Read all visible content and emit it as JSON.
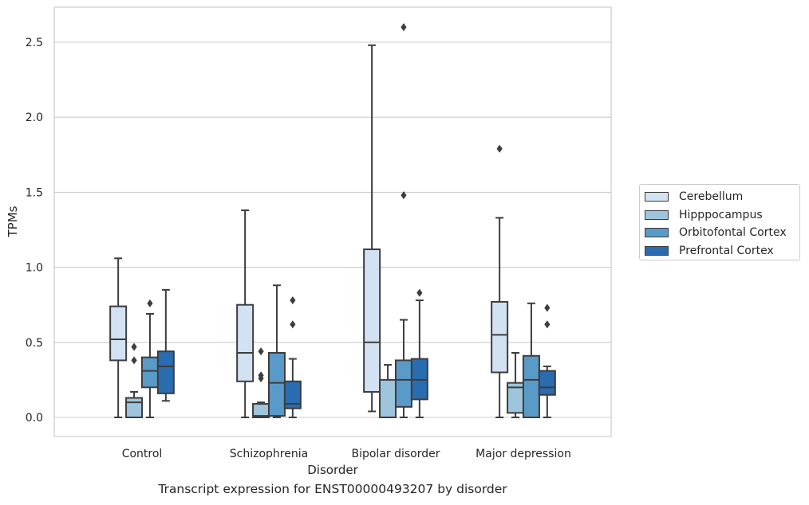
{
  "chart_data": {
    "type": "box",
    "caption": "Transcript expression for ENST00000493207 by disorder",
    "xlabel": "Disorder",
    "ylabel": "TPMs",
    "ylim": [
      -0.13,
      2.74
    ],
    "yticks": [
      0.0,
      0.5,
      1.0,
      1.5,
      2.0,
      2.5
    ],
    "ytick_labels": [
      "0.0",
      "0.5",
      "1.0",
      "1.5",
      "2.0",
      "2.5"
    ],
    "grid": "horizontal",
    "legend_position": "right",
    "categories": [
      "Control",
      "Schizophrenia",
      "Bipolar disorder",
      "Major depression"
    ],
    "series": [
      {
        "name": "Cerebellum",
        "color": "#d3e2f2",
        "boxes": [
          {
            "whisker_low": 0.0,
            "q1": 0.38,
            "median": 0.52,
            "q3": 0.74,
            "whisker_high": 1.06,
            "outliers": []
          },
          {
            "whisker_low": 0.0,
            "q1": 0.24,
            "median": 0.43,
            "q3": 0.75,
            "whisker_high": 1.38,
            "outliers": []
          },
          {
            "whisker_low": 0.04,
            "q1": 0.17,
            "median": 0.5,
            "q3": 1.12,
            "whisker_high": 2.48,
            "outliers": []
          },
          {
            "whisker_low": 0.0,
            "q1": 0.3,
            "median": 0.55,
            "q3": 0.77,
            "whisker_high": 1.33,
            "outliers": [
              1.79
            ]
          }
        ]
      },
      {
        "name": "Hipppocampus",
        "color": "#9fc5dd",
        "boxes": [
          {
            "whisker_low": 0.0,
            "q1": 0.0,
            "median": 0.1,
            "q3": 0.13,
            "whisker_high": 0.17,
            "outliers": [
              0.38,
              0.47
            ]
          },
          {
            "whisker_low": 0.0,
            "q1": 0.0,
            "median": 0.01,
            "q3": 0.09,
            "whisker_high": 0.1,
            "outliers": [
              0.26,
              0.28,
              0.44
            ]
          },
          {
            "whisker_low": 0.0,
            "q1": 0.0,
            "median": 0.0,
            "q3": 0.25,
            "whisker_high": 0.35,
            "outliers": []
          },
          {
            "whisker_low": 0.0,
            "q1": 0.03,
            "median": 0.2,
            "q3": 0.23,
            "whisker_high": 0.43,
            "outliers": []
          }
        ]
      },
      {
        "name": "Orbitofontal Cortex",
        "color": "#5a9ac8",
        "boxes": [
          {
            "whisker_low": 0.0,
            "q1": 0.2,
            "median": 0.31,
            "q3": 0.4,
            "whisker_high": 0.69,
            "outliers": [
              0.76
            ]
          },
          {
            "whisker_low": 0.0,
            "q1": 0.01,
            "median": 0.23,
            "q3": 0.43,
            "whisker_high": 0.88,
            "outliers": []
          },
          {
            "whisker_low": 0.0,
            "q1": 0.07,
            "median": 0.25,
            "q3": 0.38,
            "whisker_high": 0.65,
            "outliers": [
              1.48,
              2.6
            ]
          },
          {
            "whisker_low": 0.0,
            "q1": 0.0,
            "median": 0.25,
            "q3": 0.41,
            "whisker_high": 0.76,
            "outliers": []
          }
        ]
      },
      {
        "name": "Prefrontal Cortex",
        "color": "#2a6cb0",
        "boxes": [
          {
            "whisker_low": 0.11,
            "q1": 0.16,
            "median": 0.34,
            "q3": 0.44,
            "whisker_high": 0.85,
            "outliers": []
          },
          {
            "whisker_low": 0.0,
            "q1": 0.06,
            "median": 0.09,
            "q3": 0.24,
            "whisker_high": 0.39,
            "outliers": [
              0.62,
              0.78
            ]
          },
          {
            "whisker_low": 0.0,
            "q1": 0.12,
            "median": 0.25,
            "q3": 0.39,
            "whisker_high": 0.78,
            "outliers": [
              0.83
            ]
          },
          {
            "whisker_low": 0.0,
            "q1": 0.15,
            "median": 0.2,
            "q3": 0.31,
            "whisker_high": 0.34,
            "outliers": [
              0.62,
              0.73
            ]
          }
        ]
      }
    ]
  }
}
